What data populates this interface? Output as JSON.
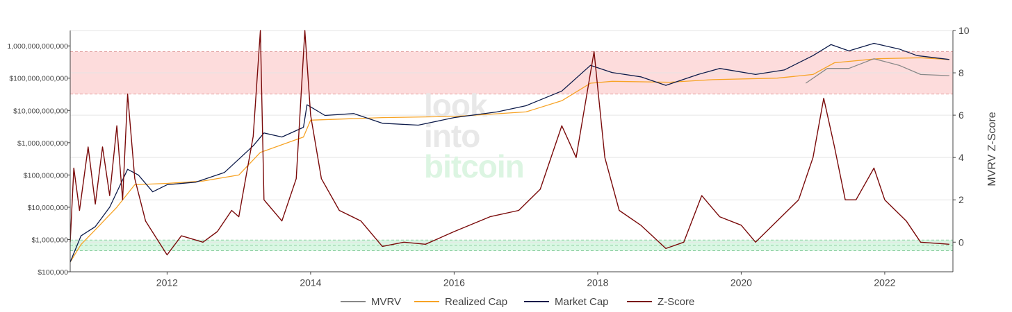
{
  "chart_data": {
    "type": "line",
    "title": "",
    "x_axis": {
      "ticks": [
        "2012",
        "2014",
        "2016",
        "2018",
        "2020",
        "2022"
      ],
      "range": [
        2010.65,
        2022.95
      ]
    },
    "y_left": {
      "scale": "log",
      "range": [
        100000,
        3000000000000
      ],
      "ticks": [
        {
          "value": 100000,
          "label": "$100,000"
        },
        {
          "value": 1000000,
          "label": "$1,000,000"
        },
        {
          "value": 10000000,
          "label": "$10,000,000"
        },
        {
          "value": 100000000,
          "label": "$100,000,000"
        },
        {
          "value": 1000000000,
          "label": "$1,000,000,000"
        },
        {
          "value": 10000000000,
          "label": "$10,000,000,000"
        },
        {
          "value": 100000000000,
          "label": "$100,000,000,000"
        },
        {
          "value": 1000000000000,
          "label": "1,000,000,000,000"
        }
      ]
    },
    "y_right": {
      "title": "MVRV Z-Score",
      "range": [
        -1.4,
        10
      ],
      "ticks": [
        0,
        2,
        4,
        6,
        8,
        10
      ]
    },
    "bands": [
      {
        "name": "high",
        "y_from": 7,
        "y_to": 9,
        "color": "#fddcdc",
        "edge": "#e2a0a0"
      },
      {
        "name": "low",
        "y_from": -0.4,
        "y_to": 0.1,
        "color": "#d9f7e3",
        "edge": "#8fd0a3"
      }
    ],
    "grid": true,
    "legend_position": "bottom-center",
    "watermark": [
      "look",
      "into",
      "bitcoin"
    ],
    "series": [
      {
        "name": "MVRV",
        "color": "#888888",
        "axis": "left",
        "points": [
          [
            2020.9,
            70000000000
          ],
          [
            2021.2,
            200000000000
          ],
          [
            2021.5,
            200000000000
          ],
          [
            2021.85,
            400000000000
          ],
          [
            2022.2,
            250000000000
          ],
          [
            2022.5,
            130000000000
          ],
          [
            2022.9,
            120000000000
          ]
        ]
      },
      {
        "name": "Realized Cap",
        "color": "#f7a325",
        "axis": "left",
        "points": [
          [
            2010.65,
            200000
          ],
          [
            2010.8,
            700000
          ],
          [
            2011.0,
            2000000
          ],
          [
            2011.3,
            10000000
          ],
          [
            2011.55,
            50000000
          ],
          [
            2012.0,
            55000000
          ],
          [
            2012.5,
            65000000
          ],
          [
            2013.0,
            100000000
          ],
          [
            2013.3,
            500000000
          ],
          [
            2013.9,
            1500000000
          ],
          [
            2014.0,
            5000000000
          ],
          [
            2015.0,
            6000000000
          ],
          [
            2016.0,
            6500000000
          ],
          [
            2017.0,
            9000000000
          ],
          [
            2017.5,
            20000000000
          ],
          [
            2017.9,
            70000000000
          ],
          [
            2018.2,
            80000000000
          ],
          [
            2019.0,
            75000000000
          ],
          [
            2019.6,
            90000000000
          ],
          [
            2020.5,
            100000000000
          ],
          [
            2021.0,
            130000000000
          ],
          [
            2021.3,
            300000000000
          ],
          [
            2021.9,
            400000000000
          ],
          [
            2022.5,
            430000000000
          ],
          [
            2022.9,
            380000000000
          ]
        ]
      },
      {
        "name": "Market Cap",
        "color": "#0d1b4a",
        "axis": "left",
        "points": [
          [
            2010.65,
            200000
          ],
          [
            2010.8,
            1300000
          ],
          [
            2011.0,
            2500000
          ],
          [
            2011.2,
            10000000
          ],
          [
            2011.45,
            150000000
          ],
          [
            2011.6,
            100000000
          ],
          [
            2011.8,
            30000000
          ],
          [
            2012.0,
            50000000
          ],
          [
            2012.4,
            60000000
          ],
          [
            2012.8,
            120000000
          ],
          [
            2013.2,
            800000000
          ],
          [
            2013.35,
            2000000000
          ],
          [
            2013.6,
            1500000000
          ],
          [
            2013.9,
            3000000000
          ],
          [
            2013.95,
            15000000000
          ],
          [
            2014.2,
            7000000000
          ],
          [
            2014.6,
            8000000000
          ],
          [
            2015.0,
            4000000000
          ],
          [
            2015.5,
            3500000000
          ],
          [
            2016.0,
            6000000000
          ],
          [
            2016.6,
            9000000000
          ],
          [
            2017.0,
            14000000000
          ],
          [
            2017.5,
            40000000000
          ],
          [
            2017.9,
            250000000000
          ],
          [
            2018.2,
            150000000000
          ],
          [
            2018.6,
            110000000000
          ],
          [
            2018.95,
            60000000000
          ],
          [
            2019.4,
            130000000000
          ],
          [
            2019.7,
            200000000000
          ],
          [
            2020.2,
            130000000000
          ],
          [
            2020.6,
            180000000000
          ],
          [
            2021.0,
            500000000000
          ],
          [
            2021.25,
            1100000000000
          ],
          [
            2021.5,
            700000000000
          ],
          [
            2021.85,
            1200000000000
          ],
          [
            2022.2,
            800000000000
          ],
          [
            2022.45,
            500000000000
          ],
          [
            2022.9,
            380000000000
          ]
        ]
      },
      {
        "name": "Z-Score",
        "color": "#7a0a0a",
        "axis": "right",
        "points": [
          [
            2010.65,
            0.0
          ],
          [
            2010.7,
            3.5
          ],
          [
            2010.78,
            1.5
          ],
          [
            2010.9,
            4.5
          ],
          [
            2011.0,
            1.8
          ],
          [
            2011.1,
            4.5
          ],
          [
            2011.2,
            2.2
          ],
          [
            2011.3,
            5.5
          ],
          [
            2011.38,
            2.0
          ],
          [
            2011.45,
            7.0
          ],
          [
            2011.55,
            3.0
          ],
          [
            2011.7,
            1.0
          ],
          [
            2011.85,
            0.2
          ],
          [
            2012.0,
            -0.6
          ],
          [
            2012.2,
            0.3
          ],
          [
            2012.5,
            0.0
          ],
          [
            2012.7,
            0.5
          ],
          [
            2012.9,
            1.5
          ],
          [
            2013.0,
            1.2
          ],
          [
            2013.2,
            5.0
          ],
          [
            2013.3,
            10.0
          ],
          [
            2013.35,
            2.0
          ],
          [
            2013.6,
            1.0
          ],
          [
            2013.8,
            3.0
          ],
          [
            2013.92,
            10.0
          ],
          [
            2014.0,
            6.0
          ],
          [
            2014.15,
            3.0
          ],
          [
            2014.4,
            1.5
          ],
          [
            2014.7,
            1.0
          ],
          [
            2015.0,
            -0.2
          ],
          [
            2015.3,
            0.0
          ],
          [
            2015.6,
            -0.1
          ],
          [
            2016.0,
            0.5
          ],
          [
            2016.5,
            1.2
          ],
          [
            2016.9,
            1.5
          ],
          [
            2017.2,
            2.5
          ],
          [
            2017.5,
            5.5
          ],
          [
            2017.7,
            4.0
          ],
          [
            2017.95,
            9.0
          ],
          [
            2018.1,
            4.0
          ],
          [
            2018.3,
            1.5
          ],
          [
            2018.6,
            0.8
          ],
          [
            2018.95,
            -0.3
          ],
          [
            2019.2,
            0.0
          ],
          [
            2019.45,
            2.2
          ],
          [
            2019.7,
            1.2
          ],
          [
            2020.0,
            0.8
          ],
          [
            2020.2,
            0.0
          ],
          [
            2020.5,
            1.0
          ],
          [
            2020.8,
            2.0
          ],
          [
            2021.0,
            4.0
          ],
          [
            2021.15,
            6.8
          ],
          [
            2021.3,
            4.5
          ],
          [
            2021.45,
            2.0
          ],
          [
            2021.6,
            2.0
          ],
          [
            2021.85,
            3.5
          ],
          [
            2022.0,
            2.0
          ],
          [
            2022.3,
            1.0
          ],
          [
            2022.5,
            0.0
          ],
          [
            2022.9,
            -0.1
          ]
        ]
      }
    ]
  },
  "colors": {
    "background": "#ffffff",
    "axis": "#444444",
    "grid": "#e5e5e5"
  }
}
